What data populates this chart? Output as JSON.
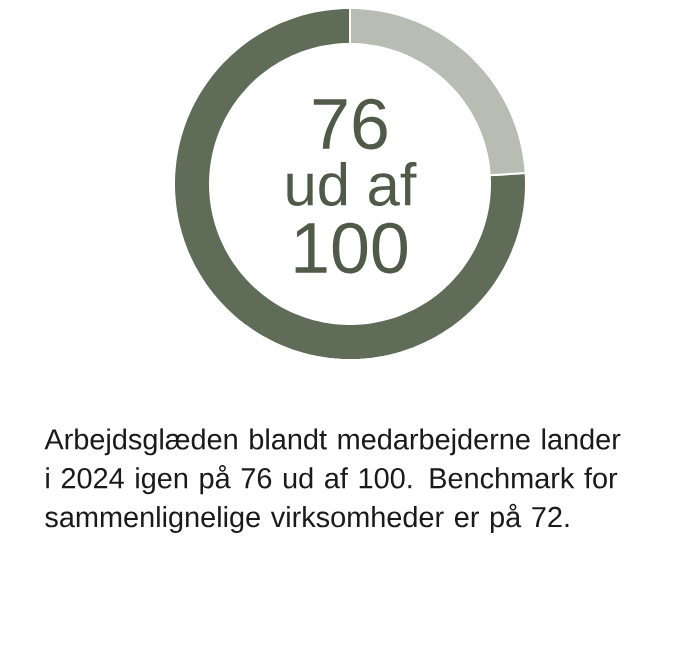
{
  "chart_data": {
    "type": "donut",
    "categories": [
      null,
      null
    ],
    "values": [
      76,
      24
    ],
    "colors": [
      "#5f6c57",
      "#b8bcb3"
    ],
    "annotations": [
      "76",
      "ud af",
      "100",
      "Arbejdsglæden blandt medarbejderne lander i 2024 igen på 76 ud af 100. Benchmark for sammenlignelige virksomheder er på 72."
    ]
  }
}
